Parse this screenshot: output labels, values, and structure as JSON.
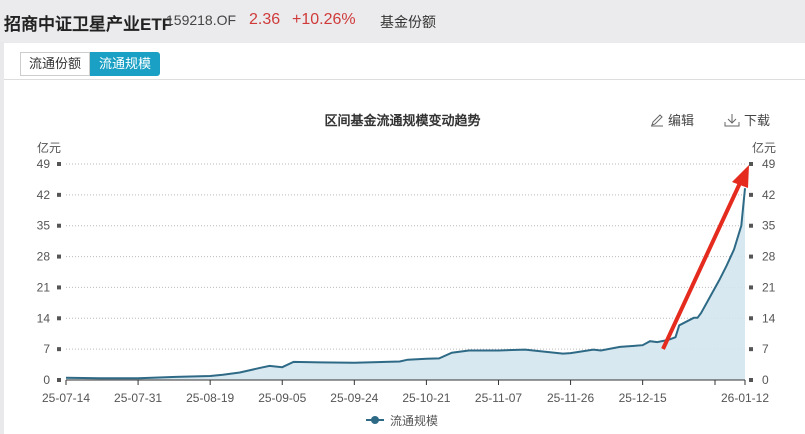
{
  "header": {
    "title": "招商中证卫星产业ETF",
    "code": "159218.OF",
    "price": "2.36",
    "change": "+10.26%",
    "link": "基金份额"
  },
  "tabs": [
    {
      "label": "流通份额",
      "active": false
    },
    {
      "label": "流通规模",
      "active": true
    }
  ],
  "toolbar": {
    "edit": "编辑",
    "download": "下载",
    "edit_icon": "pencil-icon",
    "download_icon": "download-icon"
  },
  "colors": {
    "line": "#2e6a86",
    "area": "#d4e5ee",
    "accent": "#1aa0c4",
    "up": "#d03a3a",
    "arrow": "#e52a1e"
  },
  "chart_data": {
    "type": "area",
    "title": "区间基金流通规模变动趋势",
    "ylabel_left": "亿元",
    "ylabel_right": "亿元",
    "ylim": [
      0,
      49
    ],
    "yticks": [
      0,
      7,
      14,
      21,
      28,
      35,
      42,
      49
    ],
    "xticks": [
      "25-07-14",
      "25-07-31",
      "25-08-19",
      "25-09-05",
      "25-09-24",
      "25-10-21",
      "25-11-07",
      "25-11-26",
      "25-12-15",
      "26-01-12"
    ],
    "grid": true,
    "legend": "bottom",
    "series": [
      {
        "name": "流通规模",
        "points": [
          [
            "25-07-14",
            0.5
          ],
          [
            "25-07-22",
            0.4
          ],
          [
            "25-07-31",
            0.4
          ],
          [
            "25-08-10",
            0.7
          ],
          [
            "25-08-19",
            0.9
          ],
          [
            "25-08-22",
            1.2
          ],
          [
            "25-08-26",
            1.7
          ],
          [
            "25-08-31",
            2.8
          ],
          [
            "25-09-02",
            3.2
          ],
          [
            "25-09-05",
            2.9
          ],
          [
            "25-09-08",
            4.1
          ],
          [
            "25-09-15",
            4.0
          ],
          [
            "25-09-24",
            3.9
          ],
          [
            "25-10-11",
            4.2
          ],
          [
            "25-10-14",
            4.6
          ],
          [
            "25-10-21",
            4.8
          ],
          [
            "25-10-24",
            4.9
          ],
          [
            "25-10-27",
            6.2
          ],
          [
            "25-10-31",
            6.7
          ],
          [
            "25-11-07",
            6.7
          ],
          [
            "25-11-14",
            6.9
          ],
          [
            "25-11-24",
            6.0
          ],
          [
            "25-11-26",
            6.1
          ],
          [
            "25-12-02",
            6.9
          ],
          [
            "25-12-04",
            6.7
          ],
          [
            "25-12-09",
            7.5
          ],
          [
            "25-12-15",
            7.9
          ],
          [
            "25-12-17",
            8.8
          ],
          [
            "25-12-19",
            8.6
          ],
          [
            "25-12-22",
            9.1
          ],
          [
            "25-12-24",
            9.7
          ],
          [
            "25-12-25",
            12.4
          ],
          [
            "25-12-29",
            14.1
          ],
          [
            "25-12-30",
            14.1
          ],
          [
            "25-12-31",
            15.2
          ],
          [
            "26-01-05",
            22.7
          ],
          [
            "26-01-07",
            26.0
          ],
          [
            "26-01-09",
            29.6
          ],
          [
            "26-01-11",
            35.0
          ],
          [
            "26-01-12",
            43.5
          ]
        ]
      }
    ]
  }
}
